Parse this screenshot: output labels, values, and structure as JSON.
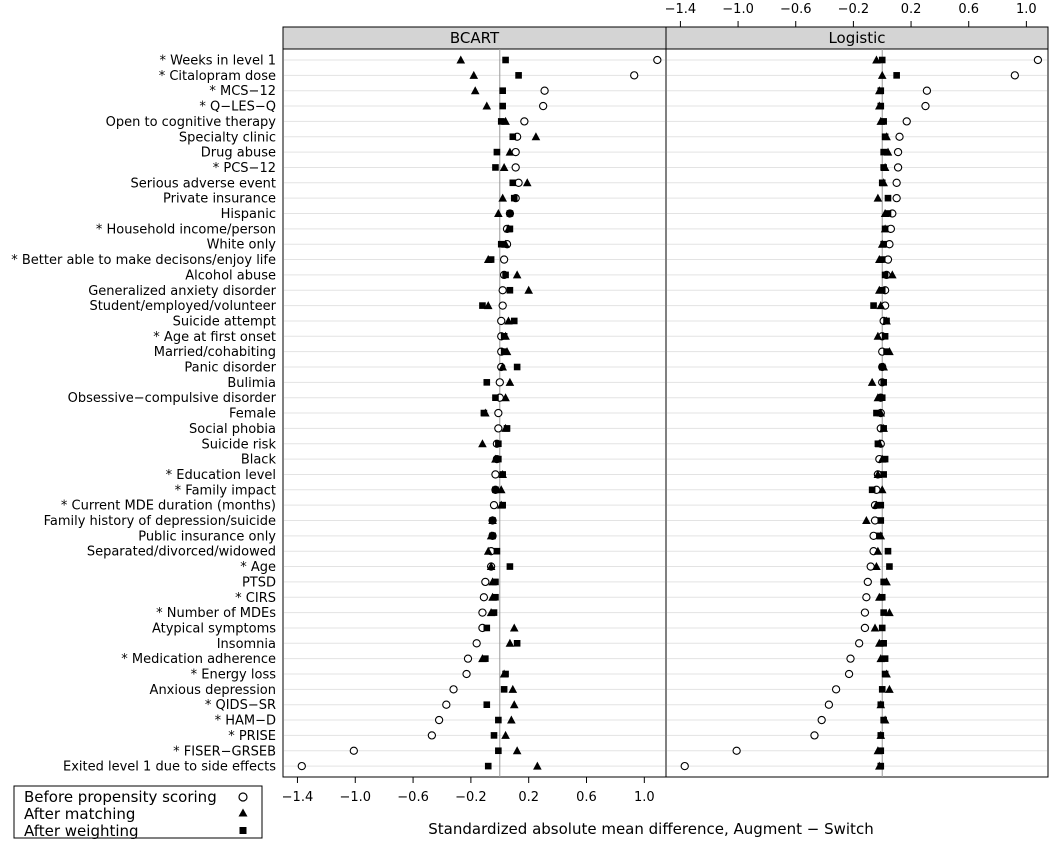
{
  "chart_data": {
    "type": "scatter",
    "xlabel": "Standardized absolute mean difference, Augment − Switch",
    "xlim": [
      -1.5,
      1.15
    ],
    "xticks": [
      "−1.4",
      "−1.0",
      "−0.6",
      "−0.2",
      "0.2",
      "0.6",
      "1.0"
    ],
    "xtick_values": [
      -1.4,
      -1.0,
      -0.6,
      -0.2,
      0.2,
      0.6,
      1.0
    ],
    "reference_line": 0,
    "legend": {
      "position": "bottom-left",
      "items": [
        {
          "label": "Before propensity scoring",
          "marker": "open-circle"
        },
        {
          "label": "After matching",
          "marker": "filled-triangle"
        },
        {
          "label": "After weighting",
          "marker": "filled-square"
        }
      ]
    },
    "covariates": [
      "* Weeks in level 1",
      "* Citalopram dose",
      "* MCS−12",
      "* Q−LES−Q",
      "Open to cognitive therapy",
      "Specialty clinic",
      "Drug abuse",
      "* PCS−12",
      "Serious adverse event",
      "Private insurance",
      "Hispanic",
      "* Household income/person",
      "White only",
      "* Better able to make decisons/enjoy life",
      "Alcohol abuse",
      "Generalized anxiety disorder",
      "Student/employed/volunteer",
      "Suicide attempt",
      "* Age at first onset",
      "Married/cohabiting",
      "Panic disorder",
      "Bulimia",
      "Obsessive−compulsive disorder",
      "Female",
      "Social phobia",
      "Suicide risk",
      "Black",
      "* Education level",
      "* Family impact",
      "* Current MDE duration (months)",
      "Family history of depression/suicide",
      "Public insurance only",
      "Separated/divorced/widowed",
      "* Age",
      "PTSD",
      "* CIRS",
      "* Number of MDEs",
      "Atypical symptoms",
      "Insomnia",
      "* Medication adherence",
      "* Energy loss",
      "Anxious depression",
      "* QIDS−SR",
      "* HAM−D",
      "* PRISE",
      "* FISER−GRSEB",
      "Exited level 1 due to side effects"
    ],
    "panels": [
      {
        "name": "BCART",
        "before": [
          1.09,
          0.93,
          0.31,
          0.3,
          0.17,
          0.12,
          0.11,
          0.11,
          0.13,
          0.11,
          0.07,
          0.05,
          0.05,
          0.03,
          0.03,
          0.02,
          0.02,
          0.01,
          0.01,
          0.01,
          0.01,
          0.0,
          0.0,
          -0.01,
          -0.01,
          -0.02,
          -0.02,
          -0.03,
          -0.03,
          -0.04,
          -0.05,
          -0.05,
          -0.06,
          -0.06,
          -0.1,
          -0.11,
          -0.12,
          -0.12,
          -0.16,
          -0.22,
          -0.23,
          -0.32,
          -0.37,
          -0.42,
          -0.47,
          -1.01,
          -1.37
        ],
        "matching": [
          -0.27,
          -0.18,
          -0.17,
          -0.09,
          0.04,
          0.25,
          0.07,
          0.03,
          0.19,
          0.02,
          -0.01,
          0.06,
          0.04,
          -0.08,
          0.12,
          0.2,
          -0.08,
          0.06,
          0.04,
          0.05,
          0.02,
          0.07,
          0.04,
          -0.1,
          0.04,
          -0.12,
          -0.03,
          0.02,
          0.01,
          0.01,
          -0.05,
          -0.06,
          -0.08,
          -0.06,
          -0.05,
          -0.05,
          -0.06,
          0.1,
          0.07,
          -0.12,
          0.03,
          0.09,
          0.1,
          0.08,
          0.04,
          0.12,
          0.26
        ],
        "weighting": [
          0.04,
          0.13,
          0.02,
          0.02,
          0.01,
          0.09,
          -0.02,
          -0.03,
          0.09,
          0.1,
          0.07,
          0.07,
          0.01,
          -0.06,
          0.04,
          0.07,
          -0.12,
          0.1,
          0.03,
          0.03,
          0.12,
          -0.09,
          -0.03,
          -0.11,
          0.05,
          -0.01,
          -0.01,
          0.02,
          -0.03,
          0.02,
          -0.05,
          -0.05,
          -0.02,
          0.07,
          -0.03,
          -0.03,
          -0.04,
          -0.09,
          0.12,
          -0.1,
          0.04,
          0.03,
          -0.09,
          -0.01,
          -0.04,
          -0.01,
          -0.08
        ]
      },
      {
        "name": "Logistic",
        "before": [
          1.08,
          0.92,
          0.31,
          0.3,
          0.17,
          0.12,
          0.11,
          0.11,
          0.1,
          0.1,
          0.07,
          0.06,
          0.05,
          0.04,
          0.03,
          0.02,
          0.02,
          0.01,
          0.0,
          0.0,
          0.0,
          0.0,
          -0.01,
          -0.01,
          -0.01,
          -0.01,
          -0.02,
          -0.03,
          -0.04,
          -0.05,
          -0.05,
          -0.06,
          -0.06,
          -0.08,
          -0.1,
          -0.11,
          -0.12,
          -0.12,
          -0.16,
          -0.22,
          -0.23,
          -0.32,
          -0.37,
          -0.42,
          -0.47,
          -1.01,
          -1.37
        ],
        "matching": [
          -0.04,
          0.0,
          -0.02,
          -0.02,
          -0.01,
          0.03,
          0.04,
          0.02,
          0.01,
          -0.03,
          0.02,
          0.02,
          0.0,
          -0.02,
          0.07,
          -0.02,
          -0.01,
          0.03,
          -0.03,
          0.05,
          0.01,
          -0.07,
          -0.03,
          -0.01,
          0.01,
          -0.02,
          0.0,
          -0.03,
          0.0,
          -0.04,
          -0.11,
          -0.01,
          -0.03,
          -0.04,
          0.03,
          -0.02,
          0.05,
          -0.05,
          -0.02,
          -0.01,
          0.03,
          0.05,
          -0.01,
          0.02,
          -0.01,
          -0.03,
          -0.02
        ],
        "weighting": [
          0.0,
          0.1,
          -0.01,
          -0.01,
          0.01,
          0.02,
          0.01,
          0.01,
          0.0,
          0.04,
          0.04,
          0.02,
          0.01,
          0.0,
          0.02,
          0.0,
          -0.06,
          0.03,
          0.02,
          0.03,
          0.0,
          0.01,
          0.0,
          -0.04,
          0.01,
          -0.03,
          0.02,
          0.01,
          -0.07,
          -0.01,
          -0.01,
          -0.02,
          0.04,
          0.05,
          0.01,
          0.0,
          0.01,
          0.0,
          0.01,
          0.02,
          0.02,
          0.0,
          -0.01,
          0.01,
          -0.01,
          -0.01,
          -0.01
        ]
      }
    ]
  }
}
